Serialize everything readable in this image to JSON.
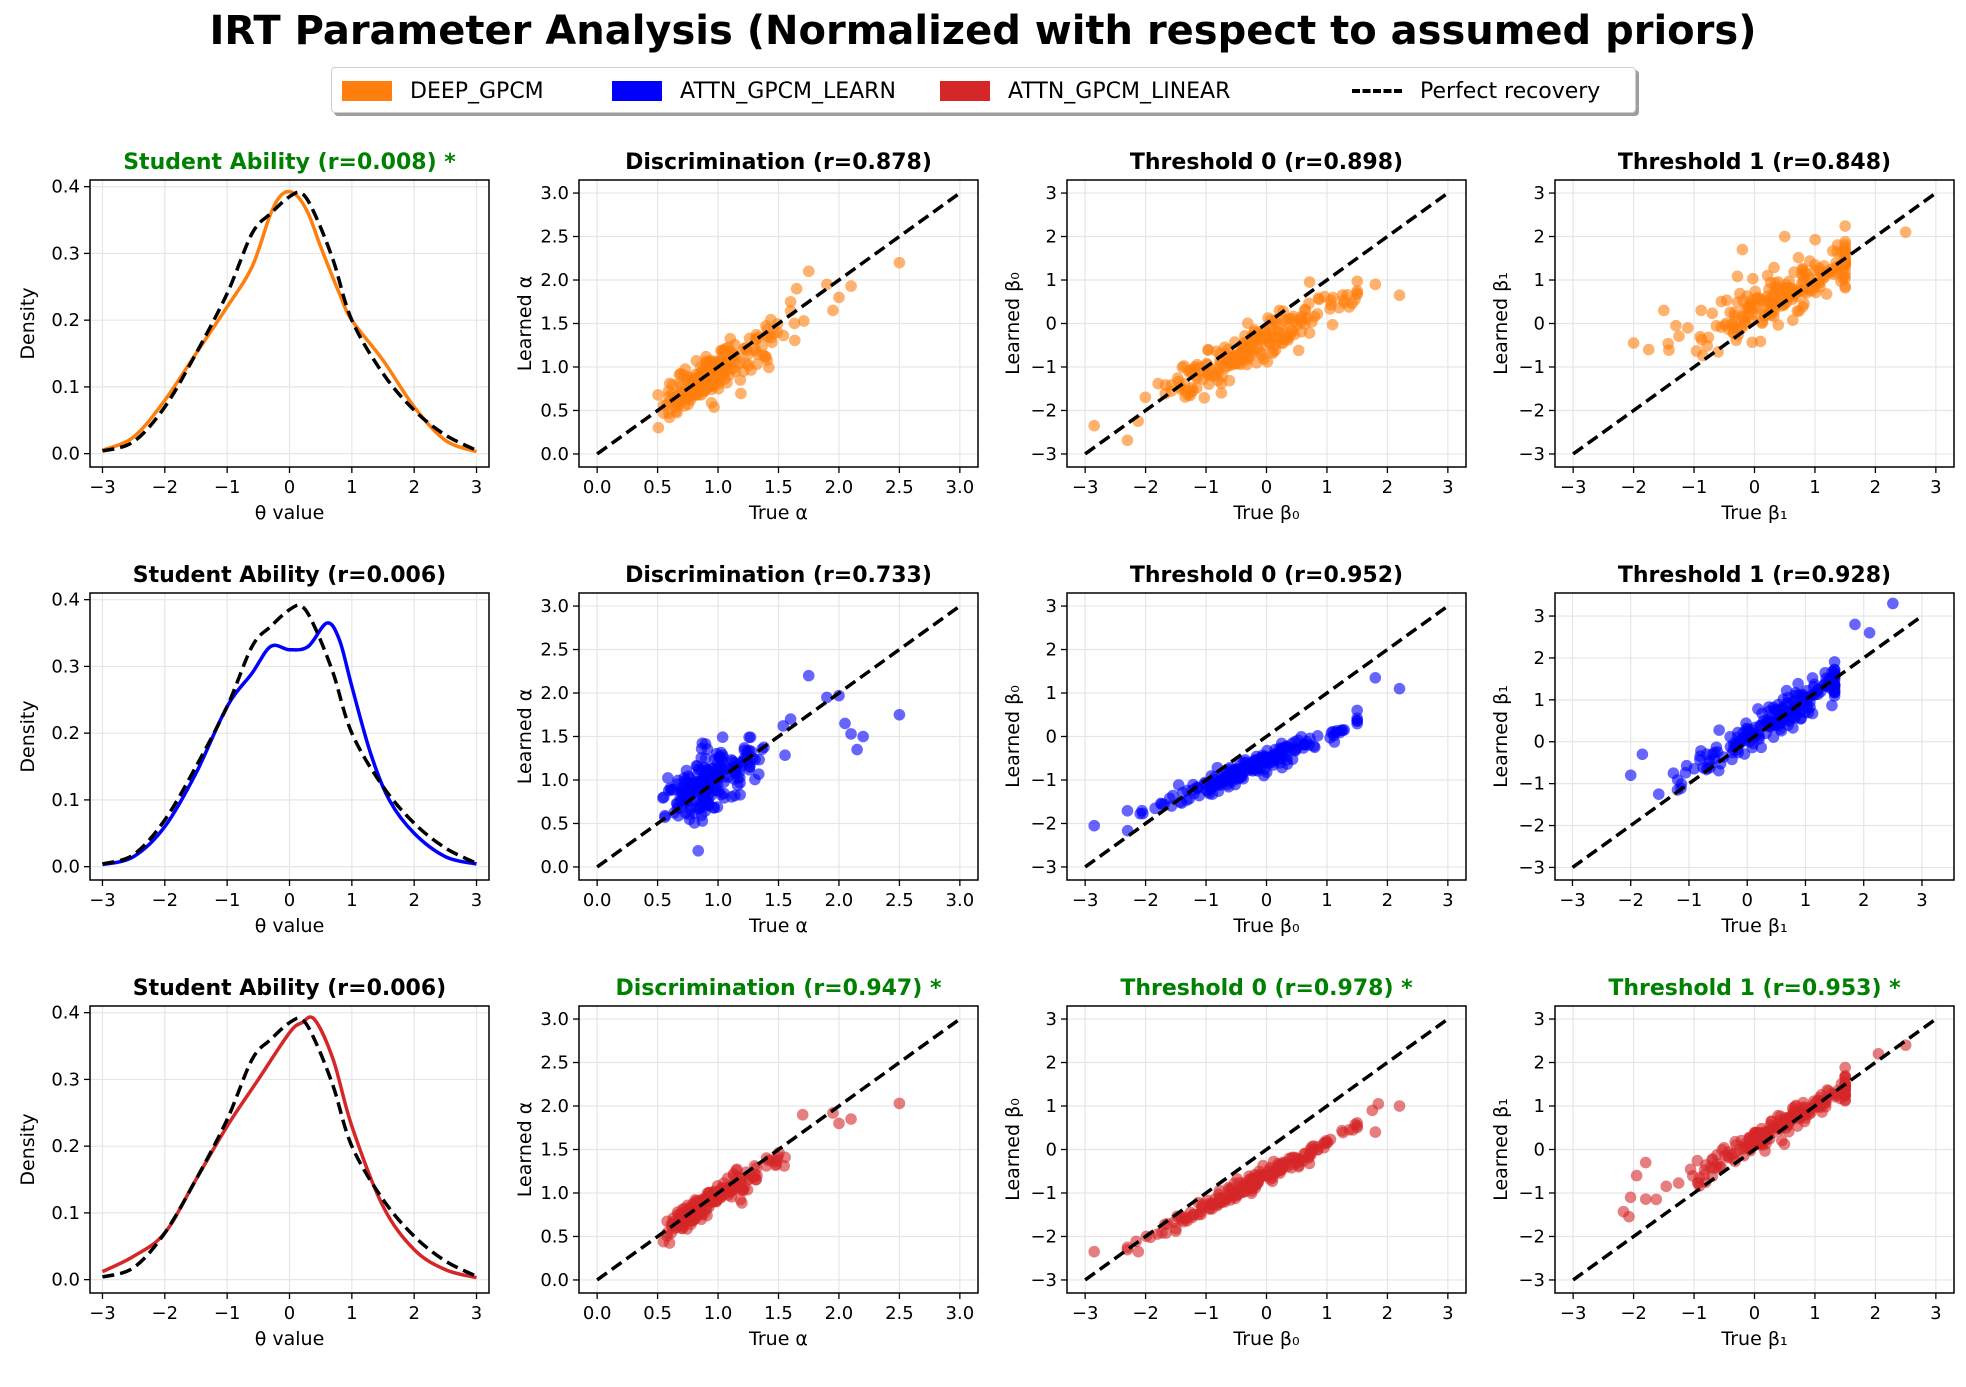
{
  "figure": {
    "title": "IRT Parameter Analysis (Normalized with respect to assumed priors)",
    "legend": [
      {
        "label": "DEEP_GPCM",
        "color": "#ff7f0e",
        "kind": "patch"
      },
      {
        "label": "ATTN_GPCM_LEARN",
        "color": "#0000ff",
        "kind": "patch"
      },
      {
        "label": "ATTN_GPCM_LINEAR",
        "color": "#d62728",
        "kind": "patch"
      },
      {
        "label": "Perfect recovery",
        "color": "#000000",
        "kind": "dashed-line"
      }
    ],
    "best_color": "#008000"
  },
  "chart_data": [
    {
      "type": "line",
      "row": 0,
      "col": 0,
      "model": "DEEP_GPCM",
      "title": "Student Ability (r=0.008) *",
      "best": true,
      "xlabel": "θ value",
      "ylabel": "Density",
      "xlim": [
        -3.2,
        3.2
      ],
      "ylim": [
        -0.02,
        0.41
      ],
      "xticks": [
        -3,
        -2,
        -1,
        0,
        1,
        2,
        3
      ],
      "yticks": [
        0.0,
        0.1,
        0.2,
        0.3,
        0.4
      ],
      "grid": true,
      "series": [
        {
          "x": [
            -3,
            -2.5,
            -2,
            -1.5,
            -1,
            -0.6,
            -0.3,
            -0.1,
            0.1,
            0.3,
            0.5,
            0.8,
            1,
            1.5,
            2,
            2.5,
            3
          ],
          "y": [
            0.005,
            0.025,
            0.08,
            0.15,
            0.22,
            0.28,
            0.36,
            0.39,
            0.388,
            0.36,
            0.31,
            0.24,
            0.2,
            0.14,
            0.07,
            0.02,
            0.003
          ],
          "color": "#ff7f0e"
        },
        {
          "x": [
            -3,
            -2.5,
            -2,
            -1.5,
            -1,
            -0.6,
            -0.3,
            0,
            0.2,
            0.4,
            0.7,
            1,
            1.5,
            2,
            2.5,
            3
          ],
          "y": [
            0.004,
            0.018,
            0.07,
            0.15,
            0.24,
            0.33,
            0.36,
            0.385,
            0.39,
            0.36,
            0.29,
            0.2,
            0.12,
            0.065,
            0.028,
            0.005
          ],
          "color": "#000000",
          "dashed": true
        }
      ]
    },
    {
      "type": "scatter",
      "row": 0,
      "col": 1,
      "model": "DEEP_GPCM",
      "title": "Discrimination (r=0.878)",
      "best": false,
      "xlabel": "True α",
      "ylabel": "Learned α",
      "xlim": [
        -0.15,
        3.15
      ],
      "ylim": [
        -0.15,
        3.15
      ],
      "xticks": [
        0.0,
        0.5,
        1.0,
        1.5,
        2.0,
        2.5,
        3.0
      ],
      "yticks": [
        0.0,
        0.5,
        1.0,
        1.5,
        2.0,
        2.5,
        3.0
      ],
      "grid": true,
      "color": "#ff7f0e",
      "perfect_line": [
        0,
        3
      ],
      "points": [],
      "generate": {
        "seed": 11,
        "n": 200,
        "dist": "gamma",
        "slope": 0.8,
        "intercept": 0.15,
        "noise": 0.13,
        "extra": [
          [
            2.5,
            2.2
          ],
          [
            2.1,
            1.93
          ],
          [
            1.75,
            2.1
          ],
          [
            1.9,
            1.95
          ],
          [
            2.0,
            1.8
          ],
          [
            1.65,
            1.9
          ],
          [
            1.6,
            1.75
          ],
          [
            1.95,
            1.65
          ]
        ]
      }
    },
    {
      "type": "scatter",
      "row": 0,
      "col": 2,
      "model": "DEEP_GPCM",
      "title": "Threshold 0 (r=0.898)",
      "best": false,
      "xlabel": "True β₀",
      "ylabel": "Learned β₀",
      "xlim": [
        -3.3,
        3.3
      ],
      "ylim": [
        -3.3,
        3.3
      ],
      "xticks": [
        -3,
        -2,
        -1,
        0,
        1,
        2,
        3
      ],
      "yticks": [
        -3,
        -2,
        -1,
        0,
        1,
        2,
        3
      ],
      "grid": true,
      "color": "#ff7f0e",
      "perfect_line": [
        -3,
        3
      ],
      "points": [],
      "generate": {
        "seed": 23,
        "n": 200,
        "dist": "normal",
        "mean": -0.3,
        "sd": 0.8,
        "slope": 0.75,
        "intercept": -0.4,
        "noise": 0.25,
        "extra": [
          [
            -2.85,
            -2.35
          ],
          [
            1.8,
            0.9
          ],
          [
            2.2,
            0.65
          ],
          [
            1.5,
            0.7
          ]
        ]
      }
    },
    {
      "type": "scatter",
      "row": 0,
      "col": 3,
      "model": "DEEP_GPCM",
      "title": "Threshold 1 (r=0.848)",
      "best": false,
      "xlabel": "True β₁",
      "ylabel": "Learned β₁",
      "xlim": [
        -3.3,
        3.3
      ],
      "ylim": [
        -3.3,
        3.3
      ],
      "xticks": [
        -3,
        -2,
        -1,
        0,
        1,
        2,
        3
      ],
      "yticks": [
        -3,
        -2,
        -1,
        0,
        1,
        2,
        3
      ],
      "grid": true,
      "color": "#ff7f0e",
      "perfect_line": [
        -3,
        3
      ],
      "points": [],
      "generate": {
        "seed": 37,
        "n": 200,
        "dist": "normal",
        "mean": 0.6,
        "sd": 0.75,
        "slope": 0.7,
        "intercept": 0.35,
        "noise": 0.3,
        "extra": [
          [
            -2.0,
            -0.45
          ],
          [
            -1.75,
            -0.6
          ],
          [
            -1.5,
            0.3
          ],
          [
            -1.3,
            -0.05
          ],
          [
            2.5,
            2.1
          ],
          [
            0.5,
            2.0
          ],
          [
            -0.2,
            1.7
          ]
        ]
      }
    },
    {
      "type": "line",
      "row": 1,
      "col": 0,
      "model": "ATTN_GPCM_LEARN",
      "title": "Student Ability (r=0.006)",
      "best": false,
      "xlabel": "θ value",
      "ylabel": "Density",
      "xlim": [
        -3.2,
        3.2
      ],
      "ylim": [
        -0.02,
        0.41
      ],
      "xticks": [
        -3,
        -2,
        -1,
        0,
        1,
        2,
        3
      ],
      "yticks": [
        0.0,
        0.1,
        0.2,
        0.3,
        0.4
      ],
      "grid": true,
      "series": [
        {
          "x": [
            -3,
            -2.5,
            -2,
            -1.5,
            -1,
            -0.6,
            -0.3,
            0,
            0.3,
            0.6,
            0.8,
            1,
            1.3,
            1.6,
            2,
            2.5,
            3
          ],
          "y": [
            0.003,
            0.015,
            0.06,
            0.14,
            0.24,
            0.29,
            0.33,
            0.325,
            0.33,
            0.365,
            0.34,
            0.27,
            0.17,
            0.1,
            0.05,
            0.015,
            0.004
          ],
          "color": "#0000ff"
        },
        {
          "x": [
            -3,
            -2.5,
            -2,
            -1.5,
            -1,
            -0.6,
            -0.3,
            0,
            0.2,
            0.4,
            0.7,
            1,
            1.5,
            2,
            2.5,
            3
          ],
          "y": [
            0.004,
            0.018,
            0.07,
            0.15,
            0.24,
            0.33,
            0.36,
            0.385,
            0.39,
            0.36,
            0.29,
            0.2,
            0.12,
            0.065,
            0.028,
            0.005
          ],
          "color": "#000000",
          "dashed": true
        }
      ]
    },
    {
      "type": "scatter",
      "row": 1,
      "col": 1,
      "model": "ATTN_GPCM_LEARN",
      "title": "Discrimination (r=0.733)",
      "best": false,
      "xlabel": "True α",
      "ylabel": "Learned α",
      "xlim": [
        -0.15,
        3.15
      ],
      "ylim": [
        -0.15,
        3.15
      ],
      "xticks": [
        0.0,
        0.5,
        1.0,
        1.5,
        2.0,
        2.5,
        3.0
      ],
      "yticks": [
        0.0,
        0.5,
        1.0,
        1.5,
        2.0,
        2.5,
        3.0
      ],
      "grid": true,
      "color": "#0000ff",
      "perfect_line": [
        0,
        3
      ],
      "points": [],
      "generate": {
        "seed": 51,
        "n": 200,
        "dist": "gamma",
        "slope": 0.7,
        "intercept": 0.3,
        "noise": 0.16,
        "extra": [
          [
            1.75,
            2.2
          ],
          [
            2.0,
            1.97
          ],
          [
            1.9,
            1.95
          ],
          [
            2.1,
            1.53
          ],
          [
            2.15,
            1.35
          ],
          [
            2.2,
            1.5
          ],
          [
            2.5,
            1.75
          ],
          [
            1.6,
            1.7
          ],
          [
            2.05,
            1.65
          ]
        ]
      }
    },
    {
      "type": "scatter",
      "row": 1,
      "col": 2,
      "model": "ATTN_GPCM_LEARN",
      "title": "Threshold 0 (r=0.952)",
      "best": false,
      "xlabel": "True β₀",
      "ylabel": "Learned β₀",
      "xlim": [
        -3.3,
        3.3
      ],
      "ylim": [
        -3.3,
        3.3
      ],
      "xticks": [
        -3,
        -2,
        -1,
        0,
        1,
        2,
        3
      ],
      "yticks": [
        -3,
        -2,
        -1,
        0,
        1,
        2,
        3
      ],
      "grid": true,
      "color": "#0000ff",
      "perfect_line": [
        -3,
        3
      ],
      "points": [],
      "generate": {
        "seed": 67,
        "n": 200,
        "dist": "normal",
        "mean": -0.3,
        "sd": 0.8,
        "slope": 0.58,
        "intercept": -0.55,
        "noise": 0.12,
        "extra": [
          [
            -2.85,
            -2.05
          ],
          [
            1.8,
            1.35
          ],
          [
            2.2,
            1.1
          ],
          [
            1.5,
            0.6
          ]
        ]
      }
    },
    {
      "type": "scatter",
      "row": 1,
      "col": 3,
      "model": "ATTN_GPCM_LEARN",
      "title": "Threshold 1 (r=0.928)",
      "best": false,
      "xlabel": "True β₁",
      "ylabel": "Learned β₁",
      "xlim": [
        -3.3,
        3.55
      ],
      "ylim": [
        -3.3,
        3.55
      ],
      "xticks": [
        -3,
        -2,
        -1,
        0,
        1,
        2,
        3
      ],
      "yticks": [
        -3,
        -2,
        -1,
        0,
        1,
        2,
        3
      ],
      "grid": true,
      "color": "#0000ff",
      "perfect_line": [
        -3,
        3
      ],
      "points": [],
      "generate": {
        "seed": 79,
        "n": 200,
        "dist": "normal",
        "mean": 0.5,
        "sd": 0.8,
        "slope": 0.9,
        "intercept": 0.1,
        "noise": 0.2,
        "extra": [
          [
            -2.0,
            -0.8
          ],
          [
            -1.8,
            -0.3
          ],
          [
            2.5,
            3.3
          ],
          [
            2.1,
            2.6
          ],
          [
            1.85,
            2.8
          ]
        ]
      }
    },
    {
      "type": "line",
      "row": 2,
      "col": 0,
      "model": "ATTN_GPCM_LINEAR",
      "title": "Student Ability (r=0.006)",
      "best": false,
      "xlabel": "θ value",
      "ylabel": "Density",
      "xlim": [
        -3.2,
        3.2
      ],
      "ylim": [
        -0.02,
        0.41
      ],
      "xticks": [
        -3,
        -2,
        -1,
        0,
        1,
        2,
        3
      ],
      "yticks": [
        0.0,
        0.1,
        0.2,
        0.3,
        0.4
      ],
      "grid": true,
      "series": [
        {
          "x": [
            -3,
            -2.5,
            -2,
            -1.5,
            -1,
            -0.5,
            0,
            0.2,
            0.4,
            0.7,
            1,
            1.5,
            2,
            2.5,
            3
          ],
          "y": [
            0.012,
            0.035,
            0.07,
            0.15,
            0.23,
            0.3,
            0.37,
            0.385,
            0.39,
            0.33,
            0.23,
            0.11,
            0.045,
            0.015,
            0.003
          ],
          "color": "#d62728"
        },
        {
          "x": [
            -3,
            -2.5,
            -2,
            -1.5,
            -1,
            -0.6,
            -0.3,
            0,
            0.2,
            0.4,
            0.7,
            1,
            1.5,
            2,
            2.5,
            3
          ],
          "y": [
            0.004,
            0.018,
            0.07,
            0.15,
            0.24,
            0.33,
            0.36,
            0.385,
            0.39,
            0.36,
            0.29,
            0.2,
            0.12,
            0.065,
            0.028,
            0.005
          ],
          "color": "#000000",
          "dashed": true
        }
      ]
    },
    {
      "type": "scatter",
      "row": 2,
      "col": 1,
      "model": "ATTN_GPCM_LINEAR",
      "title": "Discrimination (r=0.947) *",
      "best": true,
      "xlabel": "True α",
      "ylabel": "Learned α",
      "xlim": [
        -0.15,
        3.15
      ],
      "ylim": [
        -0.15,
        3.15
      ],
      "xticks": [
        0.0,
        0.5,
        1.0,
        1.5,
        2.0,
        2.5,
        3.0
      ],
      "yticks": [
        0.0,
        0.5,
        1.0,
        1.5,
        2.0,
        2.5,
        3.0
      ],
      "grid": true,
      "color": "#d62728",
      "perfect_line": [
        0,
        3
      ],
      "points": [],
      "generate": {
        "seed": 83,
        "n": 200,
        "dist": "gamma",
        "slope": 0.88,
        "intercept": 0.08,
        "noise": 0.07,
        "extra": [
          [
            2.5,
            2.03
          ],
          [
            2.1,
            1.85
          ],
          [
            1.95,
            1.92
          ],
          [
            2.0,
            1.8
          ],
          [
            1.7,
            1.9
          ]
        ]
      }
    },
    {
      "type": "scatter",
      "row": 2,
      "col": 2,
      "model": "ATTN_GPCM_LINEAR",
      "title": "Threshold 0 (r=0.978) *",
      "best": true,
      "xlabel": "True β₀",
      "ylabel": "Learned β₀",
      "xlim": [
        -3.3,
        3.3
      ],
      "ylim": [
        -3.3,
        3.3
      ],
      "xticks": [
        -3,
        -2,
        -1,
        0,
        1,
        2,
        3
      ],
      "yticks": [
        -3,
        -2,
        -1,
        0,
        1,
        2,
        3
      ],
      "grid": true,
      "color": "#d62728",
      "perfect_line": [
        -3,
        3
      ],
      "points": [],
      "generate": {
        "seed": 97,
        "n": 200,
        "dist": "normal",
        "mean": -0.3,
        "sd": 0.8,
        "slope": 0.72,
        "intercept": -0.6,
        "noise": 0.1,
        "extra": [
          [
            -2.85,
            -2.35
          ],
          [
            1.85,
            1.05
          ],
          [
            2.2,
            1.0
          ],
          [
            1.75,
            0.9
          ],
          [
            1.8,
            0.4
          ]
        ]
      }
    },
    {
      "type": "scatter",
      "row": 2,
      "col": 3,
      "model": "ATTN_GPCM_LINEAR",
      "title": "Threshold 1 (r=0.953) *",
      "best": true,
      "xlabel": "True β₁",
      "ylabel": "Learned β₁",
      "xlim": [
        -3.3,
        3.3
      ],
      "ylim": [
        -3.3,
        3.3
      ],
      "xticks": [
        -3,
        -2,
        -1,
        0,
        1,
        2,
        3
      ],
      "yticks": [
        -3,
        -2,
        -1,
        0,
        1,
        2,
        3
      ],
      "grid": true,
      "color": "#d62728",
      "perfect_line": [
        -3,
        3
      ],
      "points": [],
      "generate": {
        "seed": 109,
        "n": 200,
        "dist": "normal",
        "mean": 0.5,
        "sd": 0.8,
        "slope": 0.82,
        "intercept": 0.2,
        "noise": 0.15,
        "extra": [
          [
            -2.05,
            -1.1
          ],
          [
            -1.95,
            -0.6
          ],
          [
            -1.8,
            -0.3
          ],
          [
            2.5,
            2.4
          ],
          [
            2.05,
            2.2
          ]
        ]
      }
    }
  ]
}
